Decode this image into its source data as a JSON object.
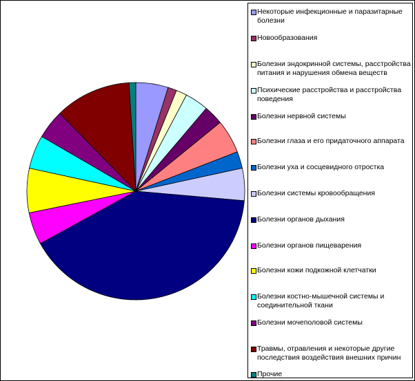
{
  "chart_data": {
    "type": "pie",
    "title": "",
    "legend_position": "right",
    "categories": [
      "Некоторые инфекционные и паразитарные болезни",
      "Новообразования",
      "Болезни эндокринной системы, расстройства питания и нарушения обмена веществ",
      "Психические расстройства и расстройства поведения",
      "Болезни нервной системы",
      "Болезни глаза и его придаточного аппарата",
      "Болезни уха и сосцевидного отростка",
      "Болезни системы кровообращения",
      "Болезни органов дыхания",
      "Болезни органов пищеварения",
      "Болезни кожи подкожной клетчатки",
      "Болезни костно-мышечной системы и соединительной ткани",
      "Болезни мочеполовой системы",
      "Травмы, отравления и некоторые другие последствия воздействия внешних причин",
      "Прочие"
    ],
    "values": [
      4.8,
      1.3,
      1.6,
      3.5,
      2.9,
      5.0,
      2.5,
      4.8,
      40.6,
      4.8,
      6.6,
      5.0,
      4.3,
      11.3,
      1.0
    ],
    "colors": [
      "#9999FF",
      "#993366",
      "#FFFFCC",
      "#CCFFFF",
      "#660066",
      "#FF8080",
      "#0066CC",
      "#CCCCFF",
      "#000080",
      "#FF00FF",
      "#FFFF00",
      "#00FFFF",
      "#800080",
      "#800000",
      "#008080"
    ]
  }
}
